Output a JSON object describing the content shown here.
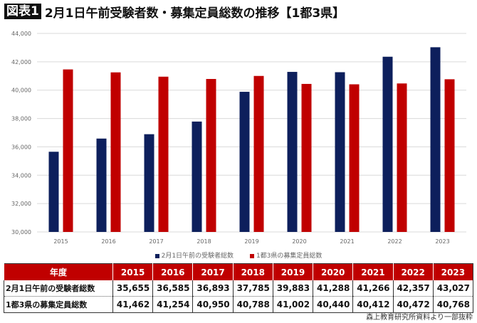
{
  "title": {
    "tag": "図表1",
    "text": "2月1日午前受験者数・募集定員総数の推移【1都3県】"
  },
  "chart_data": {
    "type": "bar",
    "categories": [
      "2015",
      "2016",
      "2017",
      "2018",
      "2019",
      "2020",
      "2021",
      "2022",
      "2023"
    ],
    "series": [
      {
        "name": "2月1日午前の受験者総数",
        "color": "#0d1f5c",
        "values": [
          35655,
          36585,
          36893,
          37785,
          39883,
          41288,
          41266,
          42357,
          43027
        ]
      },
      {
        "name": "1都3県の募集定員総数",
        "color": "#c00000",
        "values": [
          41462,
          41254,
          40950,
          40788,
          41002,
          40440,
          40412,
          40472,
          40768
        ]
      }
    ],
    "ylim": [
      30000,
      44000
    ],
    "yticks": [
      "30,000",
      "32,000",
      "34,000",
      "36,000",
      "38,000",
      "40,000",
      "42,000",
      "44,000"
    ],
    "grid": true,
    "legend": "bottom"
  },
  "table": {
    "header": "年度",
    "rows": [
      {
        "label": "2月1日午前の受験者総数",
        "values": [
          "35,655",
          "36,585",
          "36,893",
          "37,785",
          "39,883",
          "41,288",
          "41,266",
          "42,357",
          "43,027"
        ]
      },
      {
        "label": "1都3県の募集定員総数",
        "values": [
          "41,462",
          "41,254",
          "40,950",
          "40,788",
          "41,002",
          "40,440",
          "40,412",
          "40,472",
          "40,768"
        ]
      }
    ]
  },
  "source": "森上教育研究所資料より一部抜粋"
}
